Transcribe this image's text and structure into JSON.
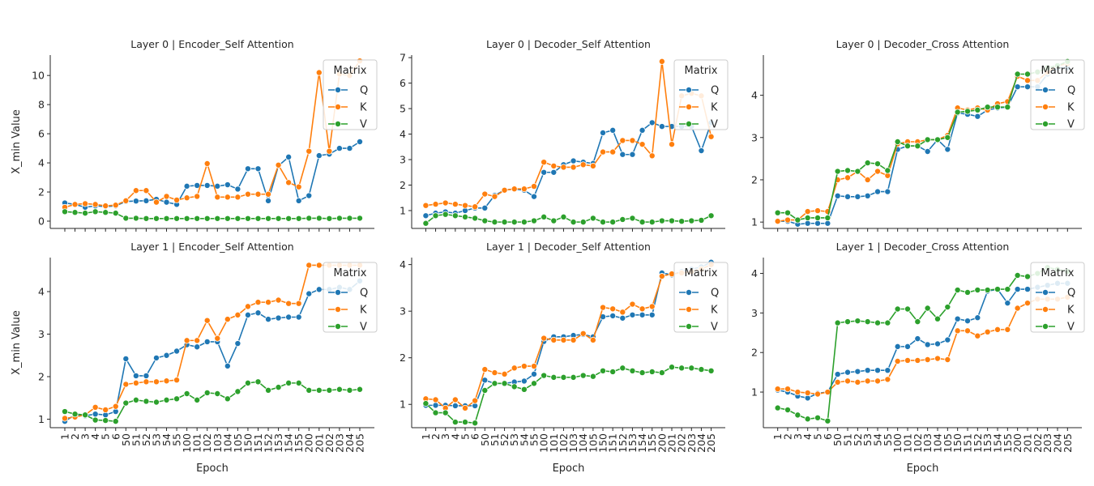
{
  "legend_title": "Matrix",
  "x_label": "Epoch",
  "y_label": "X_min Value",
  "colors": {
    "Q": "#1f77b4",
    "K": "#ff7f0e",
    "V": "#2ca02c"
  },
  "chart_data": [
    {
      "type": "line",
      "title": "Layer 0 | Encoder_Self Attention",
      "categories": [
        "1",
        "2",
        "3",
        "4",
        "5",
        "6",
        "50",
        "51",
        "52",
        "53",
        "54",
        "55",
        "100",
        "101",
        "102",
        "103",
        "104",
        "105",
        "150",
        "151",
        "152",
        "153",
        "154",
        "155",
        "200",
        "201",
        "202",
        "203",
        "204",
        "205"
      ],
      "xlabel": "",
      "ylabel": "X_min Value",
      "ylim": [
        -0.5,
        11.4
      ],
      "yticks": [
        0,
        2,
        4,
        6,
        8,
        10
      ],
      "legend": "top-right",
      "grid": false,
      "series": [
        {
          "name": "Q",
          "values": [
            1.25,
            1.15,
            0.95,
            1.05,
            1.0,
            1.05,
            1.35,
            1.38,
            1.4,
            1.5,
            1.3,
            1.15,
            2.4,
            2.45,
            2.45,
            2.4,
            2.5,
            2.2,
            3.6,
            3.6,
            1.4,
            3.8,
            4.4,
            1.4,
            1.75,
            4.5,
            4.6,
            5.0,
            5.0,
            5.45
          ]
        },
        {
          "name": "K",
          "values": [
            0.95,
            1.15,
            1.2,
            1.15,
            1.05,
            1.1,
            1.4,
            2.1,
            2.1,
            1.3,
            1.7,
            1.45,
            1.6,
            1.7,
            3.95,
            1.65,
            1.65,
            1.65,
            1.85,
            1.85,
            1.85,
            3.85,
            2.65,
            2.35,
            4.8,
            10.2,
            4.8,
            10.1,
            10.0,
            11.0
          ]
        },
        {
          "name": "V",
          "values": [
            0.65,
            0.6,
            0.55,
            0.65,
            0.6,
            0.55,
            0.2,
            0.2,
            0.18,
            0.18,
            0.18,
            0.18,
            0.18,
            0.18,
            0.18,
            0.18,
            0.18,
            0.18,
            0.18,
            0.18,
            0.18,
            0.18,
            0.18,
            0.18,
            0.2,
            0.2,
            0.18,
            0.2,
            0.2,
            0.2
          ]
        }
      ]
    },
    {
      "type": "line",
      "title": "Layer 0 | Decoder_Self Attention",
      "categories": [
        "1",
        "2",
        "3",
        "4",
        "5",
        "6",
        "50",
        "51",
        "52",
        "53",
        "54",
        "55",
        "100",
        "101",
        "102",
        "103",
        "104",
        "105",
        "150",
        "151",
        "152",
        "153",
        "154",
        "155",
        "200",
        "201",
        "202",
        "203",
        "204",
        "205"
      ],
      "xlabel": "",
      "ylabel": "",
      "ylim": [
        0.3,
        7.1
      ],
      "yticks": [
        1,
        2,
        3,
        4,
        5,
        6,
        7
      ],
      "legend": "top-right",
      "grid": false,
      "series": [
        {
          "name": "Q",
          "values": [
            0.8,
            0.9,
            0.95,
            0.9,
            1.0,
            1.1,
            1.1,
            1.6,
            1.8,
            1.85,
            1.8,
            1.55,
            2.5,
            2.5,
            2.8,
            2.95,
            2.9,
            2.85,
            4.05,
            4.15,
            3.2,
            3.2,
            4.15,
            4.45,
            4.3,
            4.3,
            4.3,
            4.3,
            3.35,
            4.45
          ]
        },
        {
          "name": "K",
          "values": [
            1.2,
            1.25,
            1.3,
            1.25,
            1.2,
            1.15,
            1.65,
            1.55,
            1.8,
            1.85,
            1.85,
            1.95,
            2.9,
            2.75,
            2.7,
            2.7,
            2.8,
            2.75,
            3.3,
            3.3,
            3.75,
            3.75,
            3.6,
            3.15,
            6.85,
            3.6,
            5.5,
            5.6,
            5.5,
            3.9
          ]
        },
        {
          "name": "V",
          "values": [
            0.5,
            0.8,
            0.85,
            0.8,
            0.75,
            0.7,
            0.6,
            0.55,
            0.55,
            0.55,
            0.55,
            0.6,
            0.75,
            0.6,
            0.75,
            0.55,
            0.55,
            0.7,
            0.55,
            0.55,
            0.65,
            0.7,
            0.55,
            0.55,
            0.6,
            0.6,
            0.58,
            0.6,
            0.62,
            0.8
          ]
        }
      ]
    },
    {
      "type": "line",
      "title": "Layer 0 | Decoder_Cross Attention",
      "categories": [
        "1",
        "2",
        "3",
        "4",
        "5",
        "6",
        "50",
        "51",
        "52",
        "53",
        "54",
        "55",
        "100",
        "101",
        "102",
        "103",
        "104",
        "105",
        "150",
        "151",
        "152",
        "153",
        "154",
        "155",
        "200",
        "201",
        "202",
        "203",
        "204",
        "205"
      ],
      "xlabel": "",
      "ylabel": "",
      "ylim": [
        0.85,
        4.95
      ],
      "yticks": [
        1,
        2,
        3,
        4
      ],
      "legend": "top-right",
      "grid": false,
      "series": [
        {
          "name": "Q",
          "values": [
            1.02,
            1.02,
            0.95,
            0.97,
            0.97,
            0.97,
            1.62,
            1.6,
            1.6,
            1.62,
            1.72,
            1.72,
            2.72,
            2.8,
            2.8,
            2.67,
            2.95,
            2.72,
            3.58,
            3.55,
            3.5,
            3.65,
            3.7,
            3.72,
            4.2,
            4.2,
            4.2,
            4.5,
            4.65,
            4.65
          ]
        },
        {
          "name": "K",
          "values": [
            1.02,
            1.05,
            1.05,
            1.25,
            1.27,
            1.25,
            2.0,
            2.05,
            2.2,
            2.0,
            2.2,
            2.1,
            2.85,
            2.9,
            2.9,
            2.95,
            2.95,
            3.05,
            3.7,
            3.65,
            3.7,
            3.65,
            3.8,
            3.85,
            4.45,
            4.35,
            4.35,
            4.55,
            4.7,
            4.75
          ]
        },
        {
          "name": "V",
          "values": [
            1.22,
            1.22,
            1.05,
            1.1,
            1.1,
            1.1,
            2.2,
            2.22,
            2.2,
            2.4,
            2.38,
            2.22,
            2.9,
            2.8,
            2.8,
            2.95,
            2.95,
            3.0,
            3.6,
            3.62,
            3.65,
            3.72,
            3.72,
            3.72,
            4.5,
            4.5,
            4.55,
            4.65,
            4.7,
            4.8
          ]
        }
      ]
    },
    {
      "type": "line",
      "title": "Layer 1 | Encoder_Self Attention",
      "categories": [
        "1",
        "2",
        "3",
        "4",
        "5",
        "6",
        "50",
        "51",
        "52",
        "53",
        "54",
        "55",
        "100",
        "101",
        "102",
        "103",
        "104",
        "105",
        "150",
        "151",
        "152",
        "153",
        "154",
        "155",
        "200",
        "201",
        "202",
        "203",
        "204",
        "205"
      ],
      "xlabel": "Epoch",
      "ylabel": "X_min Value",
      "ylim": [
        0.8,
        4.8
      ],
      "yticks": [
        1,
        2,
        3,
        4
      ],
      "legend": "top-right",
      "grid": false,
      "series": [
        {
          "name": "Q",
          "values": [
            0.95,
            1.1,
            1.08,
            1.12,
            1.1,
            1.18,
            2.42,
            2.02,
            2.02,
            2.44,
            2.5,
            2.6,
            2.75,
            2.7,
            2.82,
            2.82,
            2.25,
            2.78,
            3.45,
            3.5,
            3.35,
            3.38,
            3.4,
            3.4,
            3.95,
            4.05,
            4.05,
            4.1,
            4.05,
            4.25
          ]
        },
        {
          "name": "K",
          "values": [
            1.02,
            1.05,
            1.1,
            1.28,
            1.22,
            1.3,
            1.82,
            1.85,
            1.88,
            1.88,
            1.9,
            1.92,
            2.85,
            2.85,
            3.32,
            2.9,
            3.35,
            3.45,
            3.65,
            3.75,
            3.75,
            3.8,
            3.72,
            3.72,
            4.62,
            4.62,
            4.62,
            4.62,
            4.62,
            4.62
          ]
        },
        {
          "name": "V",
          "values": [
            1.18,
            1.12,
            1.1,
            0.98,
            0.97,
            0.95,
            1.38,
            1.45,
            1.42,
            1.4,
            1.45,
            1.48,
            1.6,
            1.45,
            1.62,
            1.6,
            1.48,
            1.65,
            1.85,
            1.88,
            1.68,
            1.75,
            1.85,
            1.85,
            1.68,
            1.68,
            1.68,
            1.7,
            1.68,
            1.7
          ]
        }
      ]
    },
    {
      "type": "line",
      "title": "Layer 1 | Decoder_Self Attention",
      "categories": [
        "1",
        "2",
        "3",
        "4",
        "5",
        "6",
        "50",
        "51",
        "52",
        "53",
        "54",
        "55",
        "100",
        "101",
        "102",
        "103",
        "104",
        "105",
        "150",
        "151",
        "152",
        "153",
        "154",
        "155",
        "200",
        "201",
        "202",
        "203",
        "204",
        "205"
      ],
      "xlabel": "Epoch",
      "ylabel": "",
      "ylim": [
        0.5,
        4.15
      ],
      "yticks": [
        1,
        2,
        3,
        4
      ],
      "legend": "top-right",
      "grid": false,
      "series": [
        {
          "name": "Q",
          "values": [
            0.98,
            0.98,
            0.98,
            0.97,
            0.97,
            0.97,
            1.52,
            1.45,
            1.45,
            1.48,
            1.5,
            1.65,
            2.35,
            2.45,
            2.45,
            2.48,
            2.5,
            2.45,
            2.88,
            2.9,
            2.85,
            2.92,
            2.92,
            2.92,
            3.82,
            3.78,
            3.85,
            3.9,
            3.95,
            4.05
          ]
        },
        {
          "name": "K",
          "values": [
            1.12,
            1.1,
            0.92,
            1.1,
            0.92,
            1.08,
            1.75,
            1.68,
            1.65,
            1.78,
            1.82,
            1.82,
            2.42,
            2.38,
            2.38,
            2.38,
            2.52,
            2.38,
            3.08,
            3.05,
            2.98,
            3.15,
            3.05,
            3.1,
            3.75,
            3.8,
            3.82,
            3.85,
            3.9,
            4.0
          ]
        },
        {
          "name": "V",
          "values": [
            1.02,
            0.82,
            0.82,
            0.62,
            0.62,
            0.6,
            1.3,
            1.45,
            1.45,
            1.38,
            1.32,
            1.45,
            1.62,
            1.58,
            1.58,
            1.58,
            1.62,
            1.6,
            1.72,
            1.7,
            1.78,
            1.72,
            1.68,
            1.7,
            1.68,
            1.8,
            1.78,
            1.78,
            1.75,
            1.72
          ]
        }
      ]
    },
    {
      "type": "line",
      "title": "Layer 1 | Decoder_Cross Attention",
      "categories": [
        "1",
        "2",
        "3",
        "4",
        "5",
        "6",
        "50",
        "51",
        "52",
        "53",
        "54",
        "55",
        "100",
        "101",
        "102",
        "103",
        "104",
        "105",
        "150",
        "151",
        "152",
        "153",
        "154",
        "155",
        "200",
        "201",
        "202",
        "203",
        "204",
        "205"
      ],
      "xlabel": "Epoch",
      "ylabel": "",
      "ylim": [
        0.1,
        4.4
      ],
      "yticks": [
        1,
        2,
        3,
        4
      ],
      "legend": "top-right",
      "grid": false,
      "series": [
        {
          "name": "Q",
          "values": [
            1.05,
            1.0,
            0.9,
            0.85,
            0.97,
            1.0,
            1.45,
            1.5,
            1.52,
            1.55,
            1.55,
            1.55,
            2.15,
            2.15,
            2.35,
            2.2,
            2.22,
            2.32,
            2.85,
            2.8,
            2.88,
            3.55,
            3.6,
            3.25,
            3.6,
            3.6,
            3.65,
            3.7,
            3.75,
            3.75
          ]
        },
        {
          "name": "K",
          "values": [
            1.08,
            1.08,
            1.0,
            0.98,
            0.95,
            1.0,
            1.25,
            1.28,
            1.25,
            1.28,
            1.28,
            1.32,
            1.78,
            1.8,
            1.8,
            1.82,
            1.85,
            1.82,
            2.55,
            2.55,
            2.42,
            2.52,
            2.58,
            2.58,
            3.12,
            3.25,
            3.35,
            3.35,
            3.35,
            3.4
          ]
        },
        {
          "name": "V",
          "values": [
            0.6,
            0.55,
            0.42,
            0.32,
            0.35,
            0.27,
            2.75,
            2.78,
            2.8,
            2.78,
            2.75,
            2.75,
            3.1,
            3.1,
            2.78,
            3.12,
            2.85,
            3.15,
            3.58,
            3.52,
            3.58,
            3.58,
            3.6,
            3.6,
            3.95,
            3.92,
            4.0,
            4.15,
            4.1,
            4.05
          ]
        }
      ]
    }
  ]
}
